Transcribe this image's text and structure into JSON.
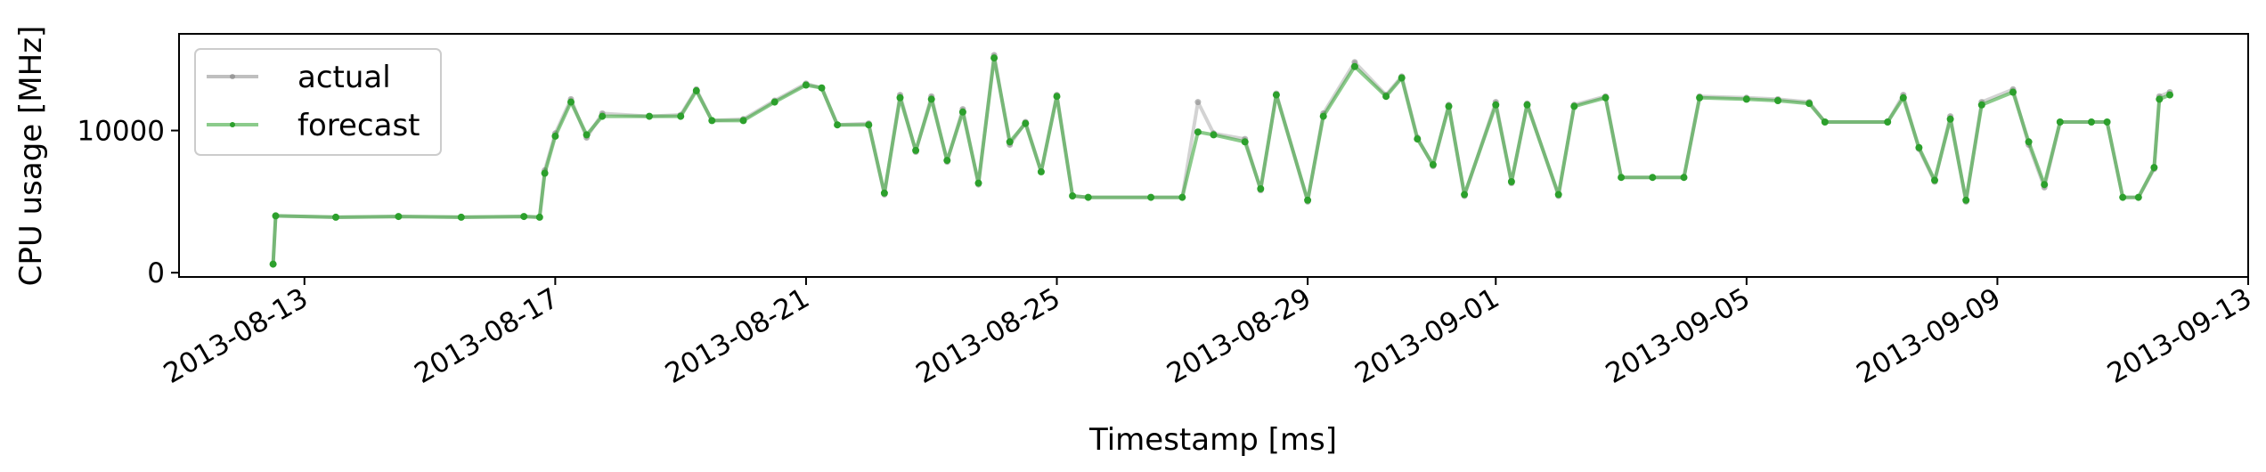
{
  "chart_data": {
    "type": "line",
    "title": "",
    "xlabel": "Timestamp [ms]",
    "ylabel": "CPU usage [MHz]",
    "x_tick_labels": [
      "2013-08-13",
      "2013-08-17",
      "2013-08-21",
      "2013-08-25",
      "2013-08-29",
      "2013-09-01",
      "2013-09-05",
      "2013-09-09",
      "2013-09-13"
    ],
    "y_tick_labels": [
      "0",
      "10000"
    ],
    "xlim": [
      "2013-08-11T00:00",
      "2013-09-13T00:00"
    ],
    "ylim": [
      -300,
      16800
    ],
    "legend": {
      "placement": "top-left",
      "entries": [
        "actual",
        "forecast"
      ]
    },
    "grid": false,
    "series": [
      {
        "name": "actual",
        "color": "#808080",
        "alpha": 0.35,
        "points": [
          [
            "2013-08-12T12:00",
            600
          ],
          [
            "2013-08-12T13:00",
            4000
          ],
          [
            "2013-08-13T12:00",
            3900
          ],
          [
            "2013-08-14T12:00",
            3950
          ],
          [
            "2013-08-15T12:00",
            3900
          ],
          [
            "2013-08-16T12:00",
            3950
          ],
          [
            "2013-08-16T18:00",
            3900
          ],
          [
            "2013-08-16T20:00",
            7200
          ],
          [
            "2013-08-17T00:00",
            9800
          ],
          [
            "2013-08-17T06:00",
            12200
          ],
          [
            "2013-08-17T12:00",
            9500
          ],
          [
            "2013-08-17T18:00",
            11200
          ],
          [
            "2013-08-18T12:00",
            11000
          ],
          [
            "2013-08-19T00:00",
            11100
          ],
          [
            "2013-08-19T06:00",
            12900
          ],
          [
            "2013-08-19T12:00",
            10700
          ],
          [
            "2013-08-20T00:00",
            10800
          ],
          [
            "2013-08-20T12:00",
            12100
          ],
          [
            "2013-08-21T00:00",
            13300
          ],
          [
            "2013-08-21T06:00",
            13000
          ],
          [
            "2013-08-21T12:00",
            10400
          ],
          [
            "2013-08-22T00:00",
            10500
          ],
          [
            "2013-08-22T06:00",
            5500
          ],
          [
            "2013-08-22T12:00",
            12500
          ],
          [
            "2013-08-22T18:00",
            8500
          ],
          [
            "2013-08-23T00:00",
            12400
          ],
          [
            "2013-08-23T06:00",
            7800
          ],
          [
            "2013-08-23T12:00",
            11500
          ],
          [
            "2013-08-23T18:00",
            6200
          ],
          [
            "2013-08-24T00:00",
            15300
          ],
          [
            "2013-08-24T06:00",
            9000
          ],
          [
            "2013-08-24T12:00",
            10600
          ],
          [
            "2013-08-24T18:00",
            7100
          ],
          [
            "2013-08-25T00:00",
            12500
          ],
          [
            "2013-08-25T06:00",
            5400
          ],
          [
            "2013-08-25T12:00",
            5300
          ],
          [
            "2013-08-26T12:00",
            5300
          ],
          [
            "2013-08-27T00:00",
            5300
          ],
          [
            "2013-08-27T06:00",
            12000
          ],
          [
            "2013-08-27T12:00",
            9800
          ],
          [
            "2013-08-28T00:00",
            9400
          ],
          [
            "2013-08-28T06:00",
            5800
          ],
          [
            "2013-08-28T12:00",
            12600
          ],
          [
            "2013-08-29T00:00",
            5000
          ],
          [
            "2013-08-29T06:00",
            11200
          ],
          [
            "2013-08-29T18:00",
            14800
          ],
          [
            "2013-08-30T06:00",
            12500
          ],
          [
            "2013-08-30T12:00",
            13800
          ],
          [
            "2013-08-30T18:00",
            9500
          ],
          [
            "2013-08-31T00:00",
            7500
          ],
          [
            "2013-08-31T06:00",
            11800
          ],
          [
            "2013-08-31T12:00",
            5400
          ],
          [
            "2013-09-01T00:00",
            12000
          ],
          [
            "2013-09-01T06:00",
            6300
          ],
          [
            "2013-09-01T12:00",
            11900
          ],
          [
            "2013-09-02T00:00",
            5400
          ],
          [
            "2013-09-02T06:00",
            11800
          ],
          [
            "2013-09-02T18:00",
            12400
          ],
          [
            "2013-09-03T00:00",
            6700
          ],
          [
            "2013-09-03T12:00",
            6700
          ],
          [
            "2013-09-04T00:00",
            6700
          ],
          [
            "2013-09-04T06:00",
            12400
          ],
          [
            "2013-09-05T00:00",
            12300
          ],
          [
            "2013-09-05T12:00",
            12200
          ],
          [
            "2013-09-06T00:00",
            12000
          ],
          [
            "2013-09-06T06:00",
            10600
          ],
          [
            "2013-09-07T06:00",
            10600
          ],
          [
            "2013-09-07T12:00",
            12500
          ],
          [
            "2013-09-07T18:00",
            8700
          ],
          [
            "2013-09-08T00:00",
            6400
          ],
          [
            "2013-09-08T06:00",
            11000
          ],
          [
            "2013-09-08T12:00",
            5000
          ],
          [
            "2013-09-08T18:00",
            12000
          ],
          [
            "2013-09-09T06:00",
            12900
          ],
          [
            "2013-09-09T12:00",
            9000
          ],
          [
            "2013-09-09T18:00",
            6000
          ],
          [
            "2013-09-10T00:00",
            10600
          ],
          [
            "2013-09-10T12:00",
            10600
          ],
          [
            "2013-09-10T18:00",
            10600
          ],
          [
            "2013-09-11T00:00",
            5300
          ],
          [
            "2013-09-11T06:00",
            5300
          ],
          [
            "2013-09-11T12:00",
            7300
          ],
          [
            "2013-09-11T14:00",
            12400
          ],
          [
            "2013-09-11T18:00",
            12700
          ]
        ]
      },
      {
        "name": "forecast",
        "color": "#2ca02c",
        "alpha": 0.55,
        "points": [
          [
            "2013-08-12T12:00",
            600
          ],
          [
            "2013-08-12T13:00",
            4000
          ],
          [
            "2013-08-13T12:00",
            3900
          ],
          [
            "2013-08-14T12:00",
            3950
          ],
          [
            "2013-08-15T12:00",
            3900
          ],
          [
            "2013-08-16T12:00",
            3950
          ],
          [
            "2013-08-16T18:00",
            3900
          ],
          [
            "2013-08-16T20:00",
            7000
          ],
          [
            "2013-08-17T00:00",
            9600
          ],
          [
            "2013-08-17T06:00",
            12000
          ],
          [
            "2013-08-17T12:00",
            9700
          ],
          [
            "2013-08-17T18:00",
            11000
          ],
          [
            "2013-08-18T12:00",
            11000
          ],
          [
            "2013-08-19T00:00",
            11000
          ],
          [
            "2013-08-19T06:00",
            12800
          ],
          [
            "2013-08-19T12:00",
            10700
          ],
          [
            "2013-08-20T00:00",
            10700
          ],
          [
            "2013-08-20T12:00",
            12000
          ],
          [
            "2013-08-21T00:00",
            13200
          ],
          [
            "2013-08-21T06:00",
            13000
          ],
          [
            "2013-08-21T12:00",
            10400
          ],
          [
            "2013-08-22T00:00",
            10400
          ],
          [
            "2013-08-22T06:00",
            5600
          ],
          [
            "2013-08-22T12:00",
            12300
          ],
          [
            "2013-08-22T18:00",
            8600
          ],
          [
            "2013-08-23T00:00",
            12200
          ],
          [
            "2013-08-23T06:00",
            7900
          ],
          [
            "2013-08-23T12:00",
            11300
          ],
          [
            "2013-08-23T18:00",
            6300
          ],
          [
            "2013-08-24T00:00",
            15100
          ],
          [
            "2013-08-24T06:00",
            9200
          ],
          [
            "2013-08-24T12:00",
            10500
          ],
          [
            "2013-08-24T18:00",
            7100
          ],
          [
            "2013-08-25T00:00",
            12400
          ],
          [
            "2013-08-25T06:00",
            5400
          ],
          [
            "2013-08-25T12:00",
            5300
          ],
          [
            "2013-08-26T12:00",
            5300
          ],
          [
            "2013-08-27T00:00",
            5300
          ],
          [
            "2013-08-27T06:00",
            9900
          ],
          [
            "2013-08-27T12:00",
            9700
          ],
          [
            "2013-08-28T00:00",
            9200
          ],
          [
            "2013-08-28T06:00",
            5900
          ],
          [
            "2013-08-28T12:00",
            12500
          ],
          [
            "2013-08-29T00:00",
            5100
          ],
          [
            "2013-08-29T06:00",
            11000
          ],
          [
            "2013-08-29T18:00",
            14500
          ],
          [
            "2013-08-30T06:00",
            12400
          ],
          [
            "2013-08-30T12:00",
            13700
          ],
          [
            "2013-08-30T18:00",
            9400
          ],
          [
            "2013-08-31T00:00",
            7600
          ],
          [
            "2013-08-31T06:00",
            11700
          ],
          [
            "2013-08-31T12:00",
            5500
          ],
          [
            "2013-09-01T00:00",
            11800
          ],
          [
            "2013-09-01T06:00",
            6400
          ],
          [
            "2013-09-01T12:00",
            11800
          ],
          [
            "2013-09-02T00:00",
            5500
          ],
          [
            "2013-09-02T06:00",
            11700
          ],
          [
            "2013-09-02T18:00",
            12300
          ],
          [
            "2013-09-03T00:00",
            6700
          ],
          [
            "2013-09-03T12:00",
            6700
          ],
          [
            "2013-09-04T00:00",
            6700
          ],
          [
            "2013-09-04T06:00",
            12300
          ],
          [
            "2013-09-05T00:00",
            12200
          ],
          [
            "2013-09-05T12:00",
            12100
          ],
          [
            "2013-09-06T00:00",
            11900
          ],
          [
            "2013-09-06T06:00",
            10600
          ],
          [
            "2013-09-07T06:00",
            10600
          ],
          [
            "2013-09-07T12:00",
            12300
          ],
          [
            "2013-09-07T18:00",
            8800
          ],
          [
            "2013-09-08T00:00",
            6500
          ],
          [
            "2013-09-08T06:00",
            10800
          ],
          [
            "2013-09-08T12:00",
            5100
          ],
          [
            "2013-09-08T18:00",
            11800
          ],
          [
            "2013-09-09T06:00",
            12700
          ],
          [
            "2013-09-09T12:00",
            9200
          ],
          [
            "2013-09-09T18:00",
            6200
          ],
          [
            "2013-09-10T00:00",
            10600
          ],
          [
            "2013-09-10T12:00",
            10600
          ],
          [
            "2013-09-10T18:00",
            10600
          ],
          [
            "2013-09-11T00:00",
            5300
          ],
          [
            "2013-09-11T06:00",
            5300
          ],
          [
            "2013-09-11T12:00",
            7400
          ],
          [
            "2013-09-11T14:00",
            12200
          ],
          [
            "2013-09-11T18:00",
            12500
          ]
        ]
      }
    ]
  }
}
